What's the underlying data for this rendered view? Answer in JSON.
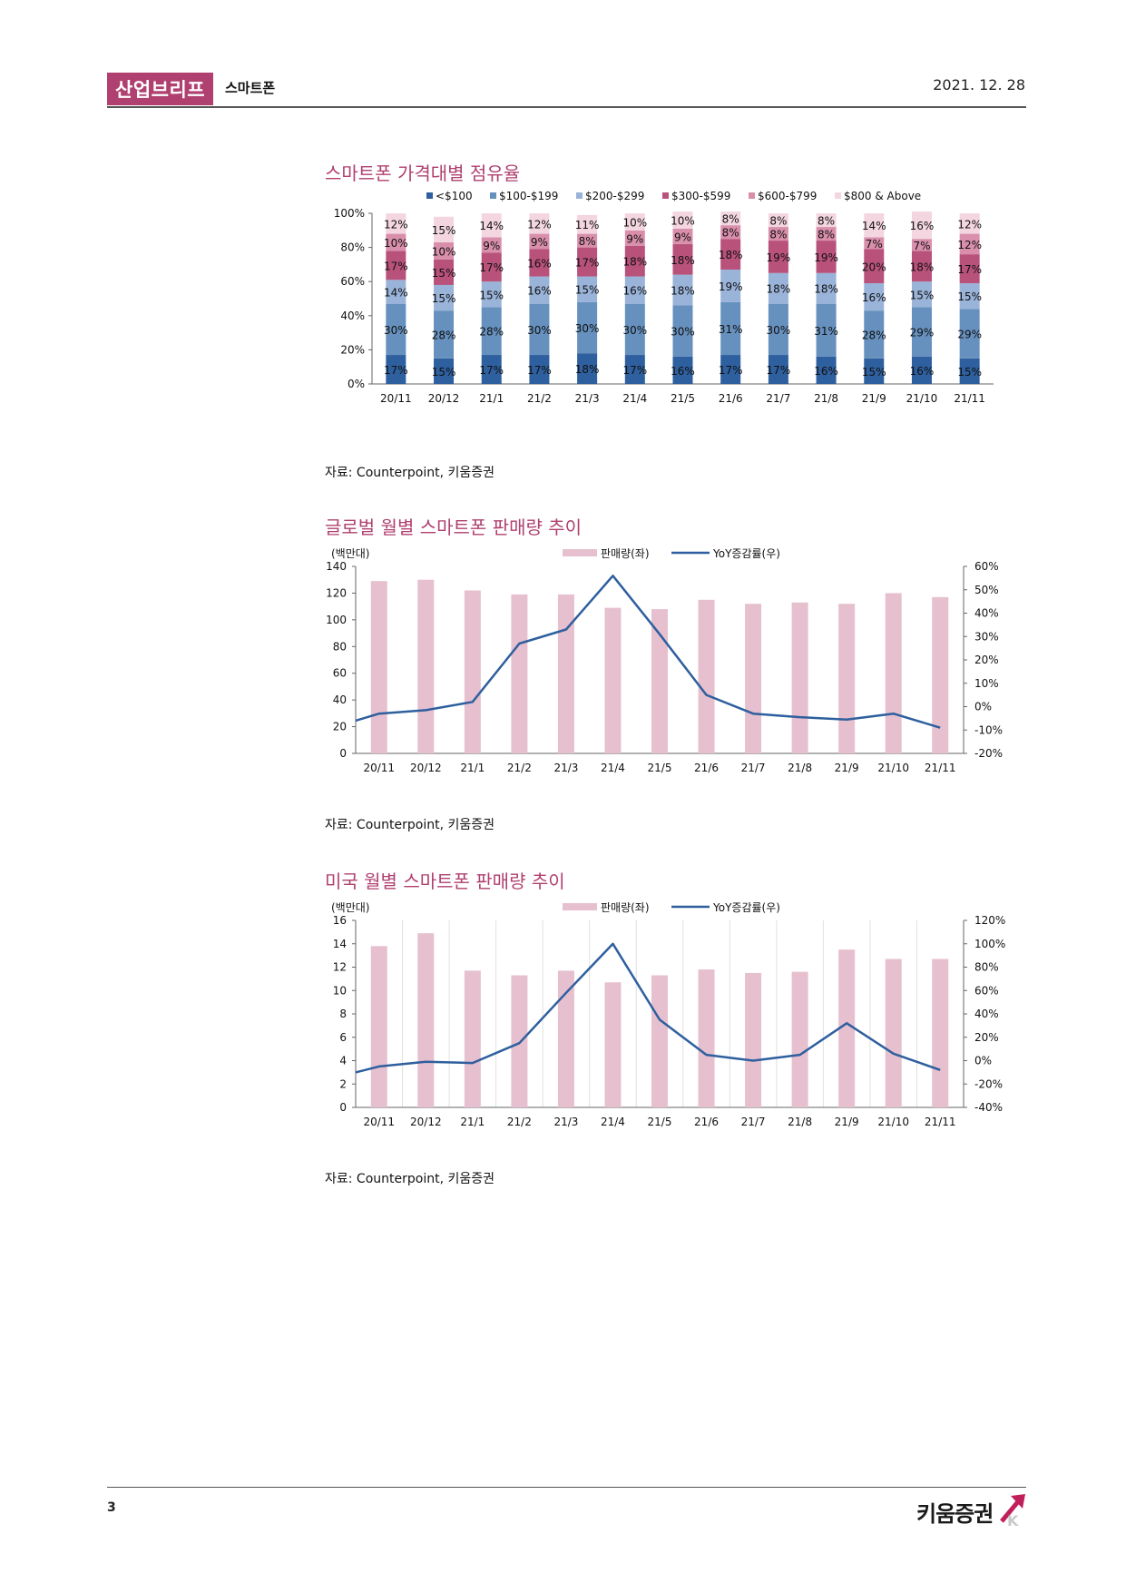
{
  "header": {
    "report_type": "산업브리프",
    "sector": "스마트폰",
    "date": "2021. 12. 28"
  },
  "footer": {
    "page_number": "3",
    "logo_text": "키움증권"
  },
  "charts": [
    {
      "title": "스마트폰 가격대별 점유율",
      "source": "자료: Counterpoint, 키움증권"
    },
    {
      "title": "글로벌 월별 스마트폰 판매량 추이",
      "source": "자료: Counterpoint, 키움증권"
    },
    {
      "title": "미국 월별 스마트폰 판매량 추이",
      "source": "자료: Counterpoint, 키움증권"
    }
  ],
  "chart_data": [
    {
      "type": "bar",
      "stacked": true,
      "categories": [
        "20/11",
        "20/12",
        "21/1",
        "21/2",
        "21/3",
        "21/4",
        "21/5",
        "21/6",
        "21/7",
        "21/8",
        "21/9",
        "21/10",
        "21/11"
      ],
      "y_ticks": [
        "0%",
        "20%",
        "40%",
        "60%",
        "80%",
        "100%"
      ],
      "ylim": [
        0,
        100
      ],
      "legend_position": "top",
      "series": [
        {
          "name": "<$100",
          "color": "#2e5f9e",
          "values": [
            17,
            15,
            17,
            17,
            18,
            17,
            16,
            17,
            17,
            16,
            15,
            16,
            15
          ]
        },
        {
          "name": "$100-$199",
          "color": "#6690bd",
          "values": [
            30,
            28,
            28,
            30,
            30,
            30,
            30,
            31,
            30,
            31,
            28,
            29,
            29
          ]
        },
        {
          "name": "$200-$299",
          "color": "#9ab3d9",
          "values": [
            14,
            15,
            15,
            16,
            15,
            16,
            18,
            19,
            18,
            18,
            16,
            15,
            15
          ]
        },
        {
          "name": "$300-$599",
          "color": "#b8527a",
          "values": [
            17,
            15,
            17,
            16,
            17,
            18,
            18,
            18,
            19,
            19,
            20,
            18,
            17
          ]
        },
        {
          "name": "$600-$799",
          "color": "#d98fab",
          "values": [
            10,
            10,
            9,
            9,
            8,
            9,
            9,
            8,
            8,
            8,
            7,
            7,
            12
          ]
        },
        {
          "name": "$800 & Above",
          "color": "#f3d6e0",
          "values": [
            12,
            15,
            14,
            12,
            11,
            10,
            10,
            8,
            8,
            8,
            14,
            16,
            12
          ]
        }
      ]
    },
    {
      "type": "bar+line",
      "y_unit": "(백만대)",
      "categories": [
        "20/11",
        "20/12",
        "21/1",
        "21/2",
        "21/3",
        "21/4",
        "21/5",
        "21/6",
        "21/7",
        "21/8",
        "21/9",
        "21/10",
        "21/11"
      ],
      "left_ticks": [
        "0",
        "20",
        "40",
        "60",
        "80",
        "100",
        "120",
        "140"
      ],
      "left_lim": [
        0,
        140
      ],
      "right_ticks": [
        "-20%",
        "-10%",
        "0%",
        "10%",
        "20%",
        "30%",
        "40%",
        "50%",
        "60%"
      ],
      "right_lim": [
        -20,
        60
      ],
      "legend_position": "top",
      "bar_series": {
        "name": "판매량(좌)",
        "color": "#e6c0cf",
        "values": [
          129,
          130,
          122,
          119,
          119,
          109,
          108,
          115,
          112,
          113,
          112,
          120,
          117
        ]
      },
      "line_series": {
        "name": "YoY증감률(우)",
        "color": "#2e5f9e",
        "values": [
          -6,
          -3,
          -1.5,
          2,
          27,
          33,
          56,
          31,
          5,
          -3,
          -4.5,
          -5.5,
          -3,
          -9
        ]
      },
      "line_x": [
        -0.5,
        0,
        1,
        2,
        3,
        4,
        5,
        6,
        7,
        8,
        9,
        10,
        11,
        12
      ]
    },
    {
      "type": "bar+line",
      "y_unit": "(백만대)",
      "categories": [
        "20/11",
        "20/12",
        "21/1",
        "21/2",
        "21/3",
        "21/4",
        "21/5",
        "21/6",
        "21/7",
        "21/8",
        "21/9",
        "21/10",
        "21/11"
      ],
      "left_ticks": [
        "0",
        "2",
        "4",
        "6",
        "8",
        "10",
        "12",
        "14",
        "16"
      ],
      "left_lim": [
        0,
        16
      ],
      "right_ticks": [
        "-40%",
        "-20%",
        "0%",
        "20%",
        "40%",
        "60%",
        "80%",
        "100%",
        "120%"
      ],
      "right_lim": [
        -40,
        120
      ],
      "legend_position": "top",
      "bar_series": {
        "name": "판매량(좌)",
        "color": "#e6c0cf",
        "values": [
          13.8,
          14.9,
          11.7,
          11.3,
          11.7,
          10.7,
          11.3,
          11.8,
          11.5,
          11.6,
          13.5,
          12.7,
          12.7
        ]
      },
      "line_series": {
        "name": "YoY증감률(우)",
        "color": "#2e5f9e",
        "values": [
          -10,
          -5,
          -1,
          -2,
          15,
          58,
          100,
          35,
          5,
          0,
          5,
          32,
          6,
          -8
        ]
      },
      "line_x": [
        -0.5,
        0,
        1,
        2,
        3,
        4,
        5,
        6,
        7,
        8,
        9,
        10,
        11,
        12
      ]
    }
  ]
}
